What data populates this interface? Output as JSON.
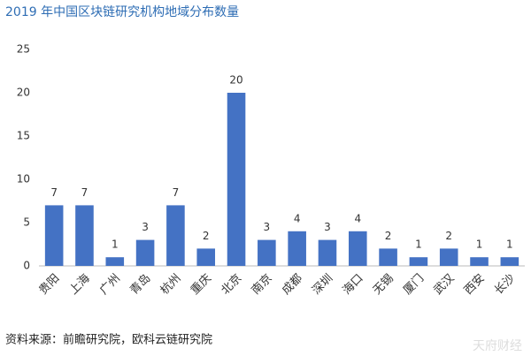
{
  "chart_data": {
    "type": "bar",
    "title": "2019 年中国区块链研究机构地域分布数量",
    "categories": [
      "贵阳",
      "上海",
      "广州",
      "青岛",
      "杭州",
      "重庆",
      "北京",
      "南京",
      "成都",
      "深圳",
      "海口",
      "无锡",
      "厦门",
      "武汉",
      "西安",
      "长沙"
    ],
    "values": [
      7,
      7,
      1,
      3,
      7,
      2,
      20,
      3,
      4,
      3,
      4,
      2,
      1,
      2,
      1,
      1
    ],
    "color": "#4472c4",
    "ylim": [
      0,
      25
    ],
    "yticks": [
      0,
      5,
      10,
      15,
      20,
      25
    ],
    "grid": false,
    "source": "资料来源：前瞻研究院，欧科云链研究院",
    "watermark": "天府财经"
  }
}
